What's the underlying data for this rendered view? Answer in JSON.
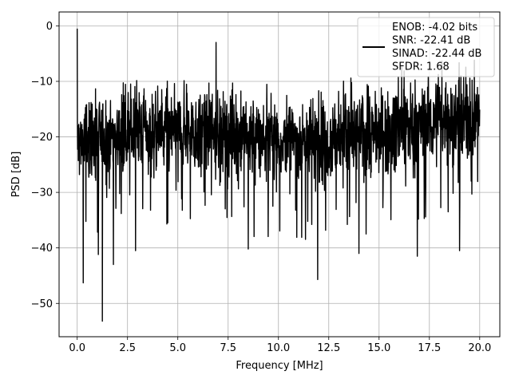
{
  "chart_data": {
    "type": "line",
    "xlabel": "Frequency [MHz]",
    "ylabel": "PSD [dB]",
    "xlim": [
      -0.9,
      21.0
    ],
    "ylim": [
      -56,
      2.5
    ],
    "x_ticks": [
      0.0,
      2.5,
      5.0,
      7.5,
      10.0,
      12.5,
      15.0,
      17.5,
      20.0
    ],
    "x_tick_labels": [
      "0.0",
      "2.5",
      "5.0",
      "7.5",
      "10.0",
      "12.5",
      "15.0",
      "17.5",
      "20.0"
    ],
    "y_ticks": [
      0,
      -10,
      -20,
      -30,
      -40,
      -50
    ],
    "y_tick_labels": [
      "0",
      "−10",
      "−20",
      "−30",
      "−40",
      "−50"
    ],
    "grid": true,
    "legend_position": "top-right",
    "series": [
      {
        "color": "#000000",
        "x_range": [
          0.0,
          20.0
        ],
        "description": "dense noisy PSD trace; starts near 0 dB at DC, mostly fluctuates between about -30 and -10 dB",
        "notable_points": [
          {
            "x": 0.0,
            "y": -0.5
          },
          {
            "x": 0.03,
            "y": -18
          },
          {
            "x": 0.3,
            "y": -46.3
          },
          {
            "x": 1.05,
            "y": -41.2
          },
          {
            "x": 1.25,
            "y": -53.2
          },
          {
            "x": 1.8,
            "y": -43.0
          },
          {
            "x": 2.9,
            "y": -40.5
          },
          {
            "x": 6.9,
            "y": -3.0
          },
          {
            "x": 8.5,
            "y": -40.2
          },
          {
            "x": 11.95,
            "y": -45.7
          },
          {
            "x": 14.0,
            "y": -41.0
          },
          {
            "x": 16.9,
            "y": -41.5
          },
          {
            "x": 19.0,
            "y": -40.5
          }
        ]
      }
    ],
    "legend": {
      "lines": [
        "ENOB: -4.02 bits",
        "SNR: -22.41 dB",
        "SINAD: -22.44 dB",
        "SFDR: 1.68"
      ]
    }
  }
}
